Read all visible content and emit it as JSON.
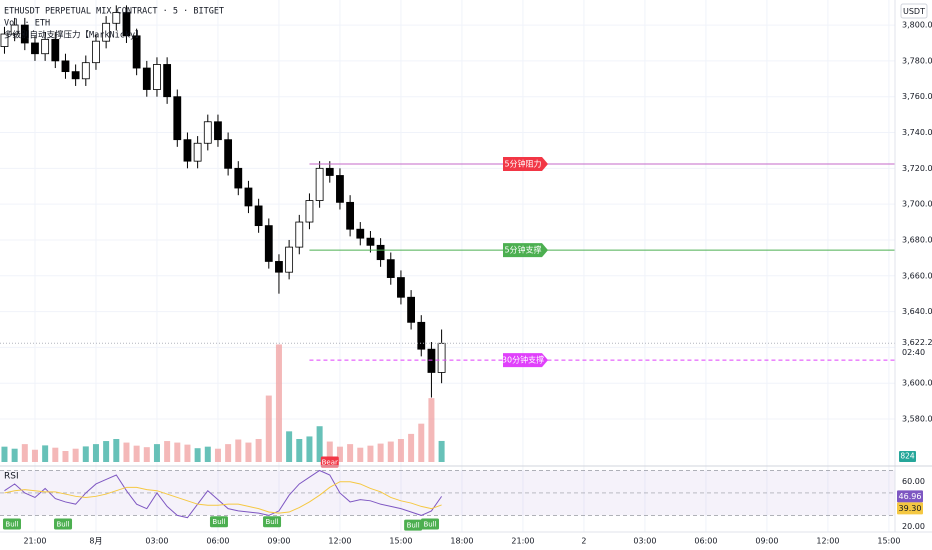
{
  "chart_data": {
    "type": "candlestick",
    "header": [
      "ETHUSDT PERPETUAL MIX CONTRACT · 5 · BITGET",
      "Vol · ETH",
      "多级别自动支撑压力【MarkNicky】"
    ],
    "currency": "USDT",
    "xlim": [
      -1.72,
      42.3
    ],
    "xticks": [
      {
        "value": 0,
        "label": "21:00"
      },
      {
        "value": 3,
        "label": "8月"
      },
      {
        "value": 6,
        "label": "03:00"
      },
      {
        "value": 9,
        "label": "06:00"
      },
      {
        "value": 12,
        "label": "09:00"
      },
      {
        "value": 15,
        "label": "12:00"
      },
      {
        "value": 18,
        "label": "15:00"
      },
      {
        "value": 21,
        "label": "18:00"
      },
      {
        "value": 24,
        "label": "21:00"
      },
      {
        "value": 27,
        "label": "2"
      },
      {
        "value": 30,
        "label": "03:00"
      },
      {
        "value": 33,
        "label": "06:00"
      },
      {
        "value": 36,
        "label": "09:00"
      },
      {
        "value": 39,
        "label": "12:00"
      },
      {
        "value": 42,
        "label": "15:00"
      }
    ],
    "ylim": [
      3556,
      3814
    ],
    "yticks": [
      {
        "value": 3580,
        "label": "3,580.00"
      },
      {
        "value": 3600,
        "label": "3,600.00"
      },
      {
        "value": 3620,
        "label": "3,620.00"
      },
      {
        "value": 3640,
        "label": "3,640.00"
      },
      {
        "value": 3660,
        "label": "3,660.00"
      },
      {
        "value": 3680,
        "label": "3,680.00"
      },
      {
        "value": 3700,
        "label": "3,700.00"
      },
      {
        "value": 3720,
        "label": "3,720.00"
      },
      {
        "value": 3740,
        "label": "3,740.00"
      },
      {
        "value": 3760,
        "label": "3,760.00"
      },
      {
        "value": 3780,
        "label": "3,780.00"
      },
      {
        "value": 3800,
        "label": "3,800.00"
      }
    ],
    "grid": true,
    "x": [
      -1.5,
      -1,
      -0.5,
      0,
      0.5,
      1,
      1.5,
      2,
      2.5,
      3,
      3.5,
      4,
      4.5,
      5,
      5.5,
      6,
      6.5,
      7,
      7.5,
      8,
      8.5,
      9,
      9.5,
      10,
      10.5,
      11,
      11.5,
      12,
      12.5,
      13,
      13.5,
      14,
      14.5,
      15,
      15.5,
      16,
      16.5,
      17,
      17.5,
      18,
      18.5,
      19,
      19.5,
      20
    ],
    "open": [
      3788,
      3795,
      3800,
      3790,
      3784,
      3792,
      3780,
      3774,
      3770,
      3779,
      3791,
      3801,
      3807,
      3794,
      3776,
      3764,
      3778,
      3760,
      3736,
      3724,
      3734,
      3746,
      3736,
      3720,
      3709,
      3699,
      3688,
      3668,
      3662,
      3676,
      3690,
      3702,
      3720,
      3716,
      3701,
      3686,
      3681,
      3677,
      3669,
      3659,
      3648,
      3634,
      3619,
      3606
    ],
    "high": [
      3799,
      3804,
      3804,
      3794,
      3796,
      3796,
      3784,
      3778,
      3783,
      3795,
      3805,
      3811,
      3811,
      3798,
      3780,
      3782,
      3782,
      3764,
      3740,
      3738,
      3750,
      3750,
      3740,
      3724,
      3713,
      3703,
      3692,
      3672,
      3680,
      3694,
      3706,
      3724,
      3724,
      3720,
      3705,
      3690,
      3685,
      3681,
      3673,
      3663,
      3652,
      3638,
      3623,
      3630
    ],
    "low": [
      3784,
      3791,
      3786,
      3780,
      3780,
      3776,
      3770,
      3766,
      3766,
      3775,
      3787,
      3797,
      3790,
      3772,
      3760,
      3760,
      3756,
      3732,
      3720,
      3720,
      3730,
      3732,
      3716,
      3705,
      3695,
      3684,
      3664,
      3650,
      3658,
      3672,
      3686,
      3698,
      3712,
      3697,
      3682,
      3677,
      3673,
      3665,
      3655,
      3644,
      3630,
      3615,
      3592,
      3600
    ],
    "close": [
      3795,
      3800,
      3790,
      3784,
      3792,
      3780,
      3774,
      3770,
      3779,
      3791,
      3801,
      3807,
      3794,
      3776,
      3764,
      3778,
      3760,
      3736,
      3724,
      3734,
      3746,
      3736,
      3720,
      3709,
      3699,
      3688,
      3668,
      3662,
      3676,
      3690,
      3702,
      3720,
      3716,
      3701,
      3686,
      3681,
      3677,
      3669,
      3659,
      3648,
      3634,
      3619,
      3606,
      3622.29
    ],
    "up_color": "#ffffff",
    "down_color": "#000000",
    "last_price": {
      "value": 3622.29,
      "label": "3,622.29",
      "countdown": "02:40"
    },
    "levels": [
      {
        "label": "5分钟阻力",
        "value": 3722.4,
        "x_start": 13.5,
        "line_color": "#c46ac8",
        "label_color": "#f23645",
        "dashed": false
      },
      {
        "label": "5分钟支撑",
        "value": 3674.3,
        "x_start": 13.5,
        "line_color": "#4caf50",
        "label_color": "#4caf50",
        "dashed": false
      },
      {
        "label": "30分钟支撑",
        "value": 3612.9,
        "x_start": 13.5,
        "line_color": "#e040fb",
        "label_color": "#e040fb",
        "dashed": true
      }
    ],
    "volume": {
      "ylim": [
        0,
        9000
      ],
      "values": [
        600,
        520,
        700,
        480,
        650,
        560,
        430,
        520,
        610,
        700,
        820,
        900,
        760,
        640,
        580,
        700,
        820,
        760,
        680,
        540,
        600,
        520,
        700,
        880,
        760,
        900,
        2600,
        4600,
        1200,
        900,
        1000,
        1400,
        800,
        600,
        700,
        560,
        640,
        720,
        800,
        900,
        1100,
        1500,
        2500,
        824
      ],
      "up_color": "#26a69a",
      "down_color": "#ef9a9a"
    },
    "rsi": {
      "title": "RSI",
      "ylim": [
        17,
        74
      ],
      "yticks": [
        {
          "value": 60,
          "label": "60.00"
        },
        {
          "value": 20,
          "label": "20.00"
        }
      ],
      "bands": [
        70,
        50,
        30
      ],
      "series": [
        {
          "name": "RSI",
          "color": "#7e57c2",
          "values": [
            52,
            58,
            50,
            46,
            54,
            45,
            42,
            40,
            50,
            58,
            62,
            66,
            52,
            40,
            36,
            50,
            38,
            30,
            28,
            40,
            52,
            44,
            36,
            34,
            33,
            32,
            30,
            34,
            48,
            58,
            64,
            70,
            66,
            50,
            42,
            44,
            43,
            40,
            38,
            36,
            33,
            30,
            34,
            46.96
          ]
        },
        {
          "name": "MA",
          "color": "#f5c842",
          "last_label": "39.30",
          "values": [
            50,
            52,
            53,
            52,
            51,
            51,
            49,
            47,
            46,
            47,
            49,
            52,
            55,
            55,
            53,
            52,
            49,
            46,
            43,
            40,
            39,
            39,
            40,
            40,
            38,
            36,
            33,
            32,
            33,
            37,
            42,
            48,
            55,
            60,
            60,
            58,
            54,
            51,
            46,
            43,
            41,
            38,
            36,
            39.3
          ]
        }
      ],
      "signals": [
        {
          "label": "Bull",
          "x": -1.13,
          "rsi": 29,
          "color": "#4caf50"
        },
        {
          "label": "Bull",
          "x": 1.38,
          "rsi": 29,
          "color": "#4caf50"
        },
        {
          "label": "Bull",
          "x": 9.05,
          "rsi": 31,
          "color": "#4caf50"
        },
        {
          "label": "Bull",
          "x": 11.66,
          "rsi": 31,
          "color": "#4caf50"
        },
        {
          "label": "Bear",
          "x": 14.5,
          "rsi": 70,
          "color": "#f23645"
        },
        {
          "label": "Bull",
          "x": 18.6,
          "rsi": 28,
          "color": "#4caf50"
        },
        {
          "label": "Bull",
          "x": 19.43,
          "rsi": 29,
          "color": "#4caf50"
        }
      ]
    }
  }
}
